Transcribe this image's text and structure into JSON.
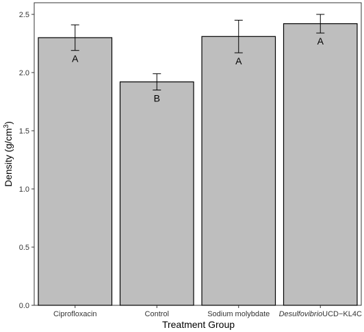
{
  "chart_data": {
    "type": "bar",
    "categories": [
      "Ciprofloxacin",
      "Control",
      "Sodium molybdate",
      "DesulfovibrioUCD-KL4C"
    ],
    "category_labels": [
      {
        "italic": "",
        "plain": "Ciprofloxacin"
      },
      {
        "italic": "",
        "plain": "Control"
      },
      {
        "italic": "",
        "plain": "Sodium molybdate"
      },
      {
        "italic": "Desulfovibrio",
        "plain": "UCD−KL4C"
      }
    ],
    "values": [
      2.3,
      1.92,
      2.31,
      2.42
    ],
    "error_low": [
      2.19,
      1.85,
      2.17,
      2.34
    ],
    "error_high": [
      2.41,
      1.99,
      2.45,
      2.5
    ],
    "significance_labels": [
      "A",
      "B",
      "A",
      "A"
    ],
    "title": "",
    "xlabel": "Treatment Group",
    "ylabel_main": "Density (g/cm",
    "ylabel_superscript": "3",
    "ylabel_close": ")",
    "ylim": [
      0,
      2.6
    ],
    "yticks": [
      0.0,
      0.5,
      1.0,
      1.5,
      2.0,
      2.5
    ],
    "ytick_labels": [
      "0.0",
      "0.5",
      "1.0",
      "1.5",
      "2.0",
      "2.5"
    ],
    "grid": false,
    "legend": "none",
    "bar_fill": "#bebebe",
    "bar_stroke": "#000000"
  }
}
